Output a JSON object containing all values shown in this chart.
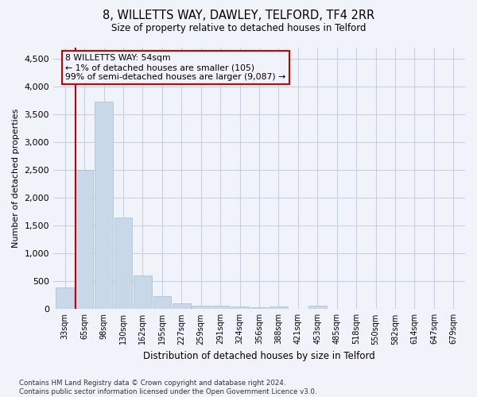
{
  "title": "8, WILLETTS WAY, DAWLEY, TELFORD, TF4 2RR",
  "subtitle": "Size of property relative to detached houses in Telford",
  "xlabel": "Distribution of detached houses by size in Telford",
  "ylabel": "Number of detached properties",
  "bar_color": "#c8d8e8",
  "bar_edge_color": "#a8bcd0",
  "categories": [
    "33sqm",
    "65sqm",
    "98sqm",
    "130sqm",
    "162sqm",
    "195sqm",
    "227sqm",
    "259sqm",
    "291sqm",
    "324sqm",
    "356sqm",
    "388sqm",
    "421sqm",
    "453sqm",
    "485sqm",
    "518sqm",
    "550sqm",
    "582sqm",
    "614sqm",
    "647sqm",
    "679sqm"
  ],
  "values": [
    390,
    2500,
    3730,
    1650,
    600,
    230,
    110,
    65,
    55,
    50,
    40,
    45,
    0,
    55,
    0,
    0,
    0,
    0,
    0,
    0,
    0
  ],
  "ylim": [
    0,
    4700
  ],
  "yticks": [
    0,
    500,
    1000,
    1500,
    2000,
    2500,
    3000,
    3500,
    4000,
    4500
  ],
  "annotation_box_text": "8 WILLETTS WAY: 54sqm\n← 1% of detached houses are smaller (105)\n99% of semi-detached houses are larger (9,087) →",
  "annotation_box_color": "#cc0000",
  "vline_color": "#cc0000",
  "footnote": "Contains HM Land Registry data © Crown copyright and database right 2024.\nContains public sector information licensed under the Open Government Licence v3.0.",
  "bg_color": "#f0f4fa",
  "grid_color": "#c8d0e0"
}
